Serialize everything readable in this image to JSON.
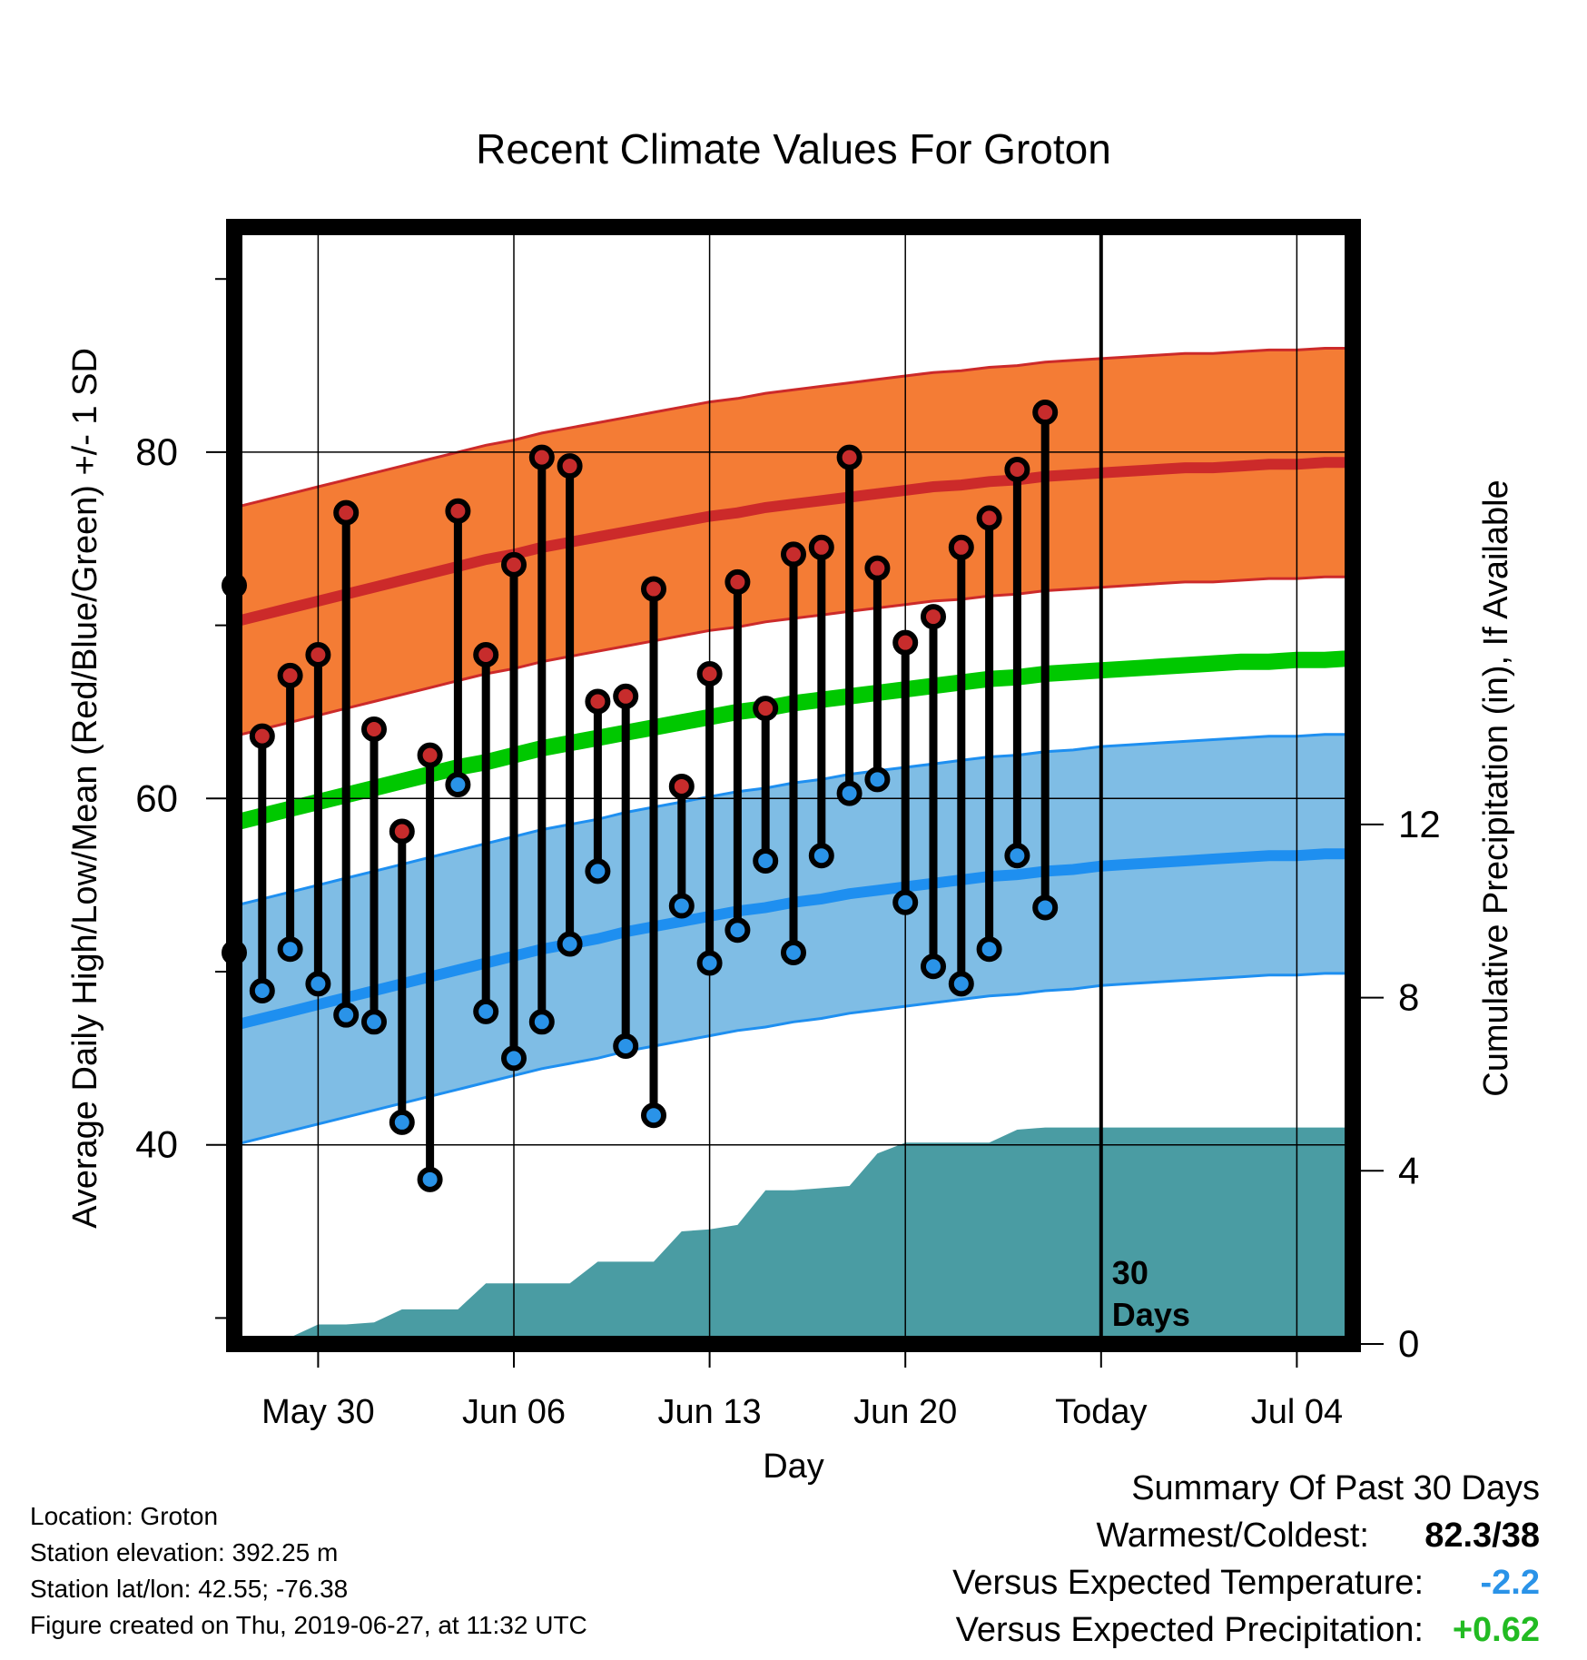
{
  "chart_data": {
    "type": "line",
    "title": "Recent Climate Values For Groton",
    "xlabel": "Day",
    "ylabel": "Average Daily High/Low/Mean (Red/Blue/Green) +/- 1 SD",
    "y2label": "Cumulative Precipitation (in), If Available",
    "x_tick_labels": [
      "May 30",
      "Jun 06",
      "Jun 13",
      "Jun 20",
      "Today",
      "Jul 04"
    ],
    "x_tick_days": [
      3,
      10,
      17,
      24,
      31,
      38
    ],
    "xlim": [
      0,
      40
    ],
    "ylim": [
      28.5,
      93
    ],
    "y_ticks": [
      40,
      60,
      80
    ],
    "y2lim": [
      0,
      25.8
    ],
    "y2_ticks": [
      0,
      4,
      8,
      12
    ],
    "today_label": "30\nDays",
    "daily_high": [
      72.3,
      63.6,
      67.1,
      68.3,
      76.5,
      64.0,
      58.1,
      62.5,
      76.6,
      68.3,
      73.5,
      79.7,
      79.2,
      65.6,
      65.9,
      72.1,
      60.7,
      67.2,
      72.5,
      65.2,
      74.1,
      74.5,
      79.7,
      73.3,
      69.0,
      70.5,
      74.5,
      76.2,
      79.0,
      82.3
    ],
    "daily_low": [
      51.1,
      48.9,
      51.3,
      49.3,
      47.5,
      47.1,
      41.3,
      38.0,
      60.8,
      47.7,
      45.0,
      47.1,
      51.6,
      55.8,
      45.7,
      41.7,
      53.8,
      50.5,
      52.4,
      56.4,
      51.1,
      56.7,
      60.3,
      61.1,
      54.0,
      50.3,
      49.3,
      51.3,
      56.7,
      53.7
    ],
    "normal_high": [
      70.2,
      70.6,
      71.0,
      71.4,
      71.8,
      72.2,
      72.6,
      73.0,
      73.4,
      73.8,
      74.1,
      74.5,
      74.8,
      75.1,
      75.4,
      75.7,
      76.0,
      76.3,
      76.5,
      76.8,
      77.0,
      77.2,
      77.4,
      77.6,
      77.8,
      78.0,
      78.1,
      78.3,
      78.4,
      78.6,
      78.7,
      78.8,
      78.9,
      79.0,
      79.1,
      79.1,
      79.2,
      79.3,
      79.3,
      79.4,
      79.4
    ],
    "normal_high_sd": 6.6,
    "normal_low": [
      46.9,
      47.3,
      47.7,
      48.1,
      48.5,
      48.9,
      49.3,
      49.7,
      50.1,
      50.5,
      50.9,
      51.3,
      51.6,
      51.9,
      52.3,
      52.6,
      52.9,
      53.2,
      53.5,
      53.7,
      54.0,
      54.2,
      54.5,
      54.7,
      54.9,
      55.1,
      55.3,
      55.5,
      55.6,
      55.8,
      55.9,
      56.1,
      56.2,
      56.3,
      56.4,
      56.5,
      56.6,
      56.7,
      56.7,
      56.8,
      56.8
    ],
    "normal_low_sd": 6.9,
    "normal_mean": [
      58.6,
      59.0,
      59.4,
      59.8,
      60.2,
      60.6,
      61.0,
      61.4,
      61.8,
      62.1,
      62.5,
      62.9,
      63.2,
      63.5,
      63.8,
      64.1,
      64.4,
      64.7,
      65.0,
      65.2,
      65.5,
      65.7,
      65.9,
      66.1,
      66.3,
      66.5,
      66.7,
      66.9,
      67.0,
      67.2,
      67.3,
      67.4,
      67.5,
      67.6,
      67.7,
      67.8,
      67.9,
      67.9,
      68.0,
      68.0,
      68.1
    ],
    "cumulative_precip": [
      0.0,
      0.1,
      0.15,
      0.45,
      0.45,
      0.5,
      0.8,
      0.8,
      0.8,
      1.4,
      1.4,
      1.4,
      1.4,
      1.9,
      1.9,
      1.9,
      2.6,
      2.65,
      2.75,
      3.55,
      3.55,
      3.6,
      3.65,
      4.4,
      4.65,
      4.65,
      4.65,
      4.65,
      4.95,
      5.0,
      5.0
    ],
    "grid": true,
    "colors": {
      "high_band": "#f47c35",
      "high_line": "#cc2a2a",
      "low_band": "#7fbde5",
      "low_line": "#1e8ff0",
      "mean_line": "#00c800",
      "precip": "#4a9ca3",
      "high_point": "#c72c2c",
      "low_point": "#2a93e8"
    }
  },
  "info": {
    "location": "Location: Groton",
    "elevation": "Station elevation: 392.25 m",
    "latlon": "Station lat/lon: 42.55; -76.38",
    "created": "Figure created on Thu, 2019-06-27, at 11:32 UTC"
  },
  "summary": {
    "title": "Summary Of Past 30 Days",
    "warm_cold_label": "Warmest/Coldest:",
    "warm_cold_value": "82.3/38",
    "temp_label": "Versus Expected Temperature:",
    "temp_value": "-2.2",
    "temp_color": "#2a93e8",
    "precip_label": "Versus Expected Precipitation:",
    "precip_value": "+0.62",
    "precip_color": "#22bb22"
  }
}
